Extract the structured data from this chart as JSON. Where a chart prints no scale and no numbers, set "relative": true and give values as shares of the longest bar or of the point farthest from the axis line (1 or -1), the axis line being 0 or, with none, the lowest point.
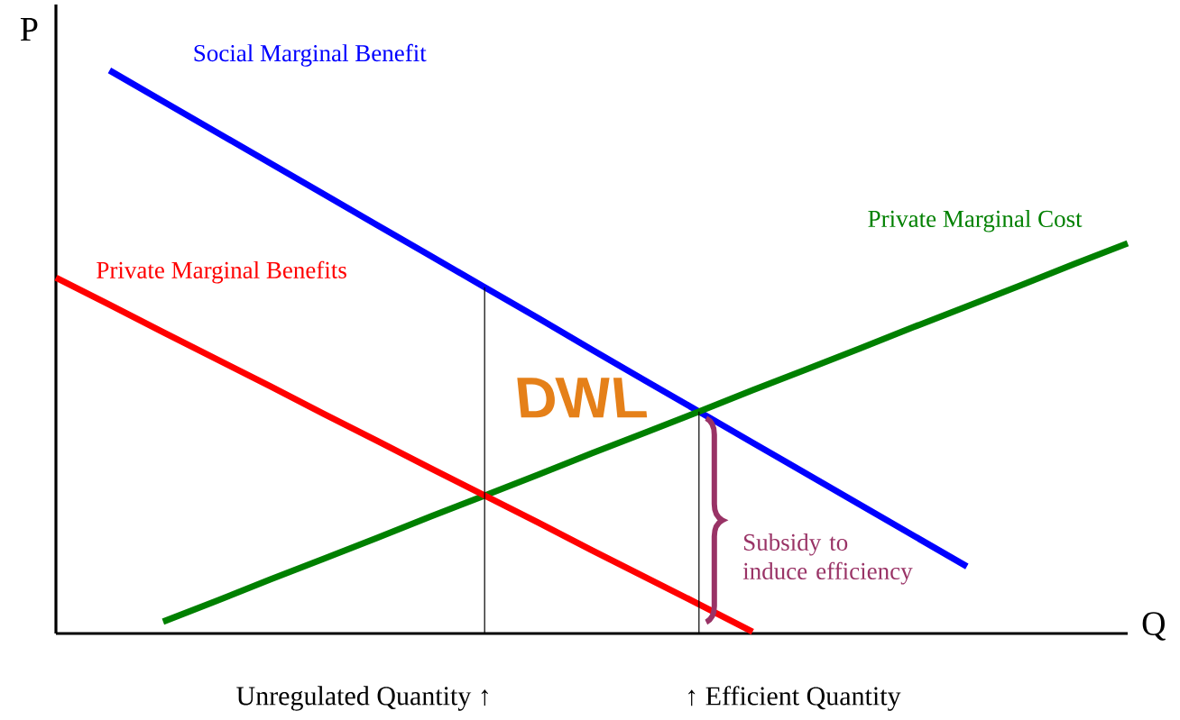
{
  "chart_data": {
    "type": "line",
    "relative": true,
    "xlabel": "Q",
    "ylabel": "P",
    "categories": [
      null,
      null,
      null,
      null,
      null,
      null,
      null,
      null,
      null,
      null,
      null,
      null,
      null,
      null,
      null,
      null,
      null,
      null,
      null,
      null,
      null
    ],
    "series": [
      {
        "name": "Social Marginal Benefit",
        "color": "#0000ff",
        "values": [
          null,
          1.0,
          0.945,
          0.89,
          0.835,
          0.78,
          0.725,
          0.67,
          0.615,
          0.56,
          0.504,
          0.449,
          0.394,
          0.339,
          0.284,
          0.229,
          0.174,
          0.119,
          null,
          null,
          null
        ]
      },
      {
        "name": "Private Marginal Cost",
        "color": "#008000",
        "values": [
          null,
          null,
          0.021,
          0.058,
          0.096,
          0.133,
          0.17,
          0.208,
          0.245,
          0.282,
          0.32,
          0.357,
          0.394,
          0.432,
          0.469,
          0.506,
          0.544,
          0.581,
          0.618,
          0.656,
          0.693
        ]
      },
      {
        "name": "Private Marginal Benefits",
        "color": "#ff0000",
        "values": [
          0.632,
          0.584,
          0.535,
          0.487,
          0.439,
          0.39,
          0.342,
          0.293,
          0.245,
          0.197,
          0.148,
          0.1,
          0.052,
          0.003,
          null,
          null,
          null,
          null,
          null,
          null,
          null
        ]
      }
    ],
    "annotations": [
      "DWL",
      "Unregulated Quantity ↑",
      "↑ Efficient Quantity",
      "Subsidy to induce efficiency"
    ]
  }
}
